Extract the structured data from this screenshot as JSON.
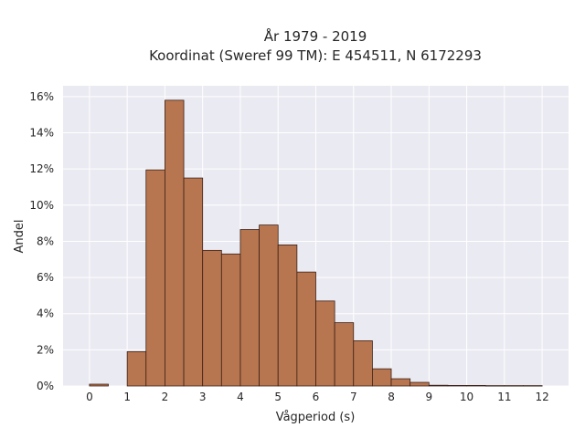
{
  "chart_data": {
    "type": "bar",
    "title_lines": [
      "År 1979 - 2019",
      "Koordinat (Sweref 99 TM): E 454511, N 6172293"
    ],
    "xlabel": "Vågperiod (s)",
    "ylabel": "Andel",
    "xlim": [
      -0.7,
      12.7
    ],
    "ylim": [
      0,
      16.6
    ],
    "x_ticks": [
      0,
      1,
      2,
      3,
      4,
      5,
      6,
      7,
      8,
      9,
      10,
      11,
      12
    ],
    "y_ticks": [
      0,
      2,
      4,
      6,
      8,
      10,
      12,
      14,
      16
    ],
    "y_tick_suffix": "%",
    "bin_width": 0.5,
    "bins": [
      {
        "x0": 0.0,
        "value": 0.1
      },
      {
        "x0": 0.5,
        "value": 0.0
      },
      {
        "x0": 1.0,
        "value": 1.9
      },
      {
        "x0": 1.5,
        "value": 11.95
      },
      {
        "x0": 2.0,
        "value": 15.8
      },
      {
        "x0": 2.5,
        "value": 11.5
      },
      {
        "x0": 3.0,
        "value": 7.5
      },
      {
        "x0": 3.5,
        "value": 7.3
      },
      {
        "x0": 4.0,
        "value": 8.65
      },
      {
        "x0": 4.5,
        "value": 8.9
      },
      {
        "x0": 5.0,
        "value": 7.8
      },
      {
        "x0": 5.5,
        "value": 6.3
      },
      {
        "x0": 6.0,
        "value": 4.7
      },
      {
        "x0": 6.5,
        "value": 3.5
      },
      {
        "x0": 7.0,
        "value": 2.5
      },
      {
        "x0": 7.5,
        "value": 0.95
      },
      {
        "x0": 8.0,
        "value": 0.4
      },
      {
        "x0": 8.5,
        "value": 0.2
      },
      {
        "x0": 9.0,
        "value": 0.04
      },
      {
        "x0": 9.5,
        "value": 0.03
      },
      {
        "x0": 10.0,
        "value": 0.03
      },
      {
        "x0": 10.5,
        "value": 0.02
      },
      {
        "x0": 11.0,
        "value": 0.02
      },
      {
        "x0": 11.5,
        "value": 0.02
      }
    ],
    "grid": true,
    "bar_color": "#b87650",
    "bar_edge_color": "#3b2016",
    "plot_background": "#eaeaf2",
    "grid_color": "#ffffff"
  }
}
